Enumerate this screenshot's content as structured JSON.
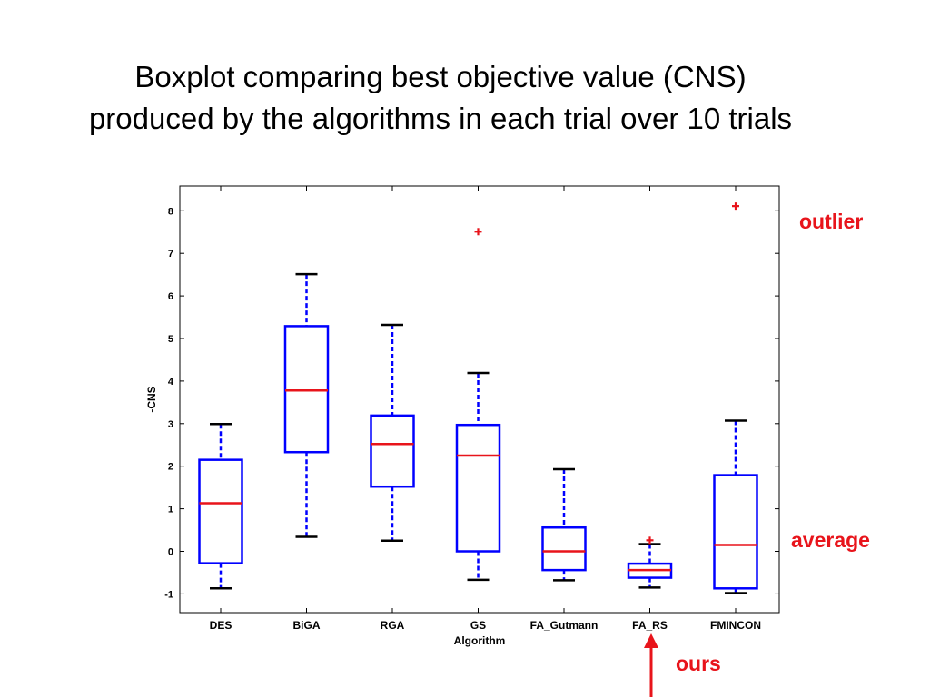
{
  "slide": {
    "title_line1": "Boxplot comparing best objective value (CNS)",
    "title_line2": "produced by the algorithms in each trial over 10 trials"
  },
  "annotations": {
    "outlier": "outlier",
    "average": "average",
    "ours": "ours"
  },
  "colors": {
    "box": "#0000ff",
    "median": "#e8141b",
    "whisker_cap": "#000000",
    "outlier": "#e8141b",
    "annotation": "#e8141b"
  },
  "chart_data": {
    "type": "box",
    "title": "",
    "xlabel": "Algorithm",
    "ylabel": "-CNS",
    "ylim": [
      -1.5,
      8.6
    ],
    "yticks": [
      "-1",
      "0",
      "1",
      "2",
      "3",
      "4",
      "5",
      "6",
      "7",
      "8"
    ],
    "grid": false,
    "categories": [
      "DES",
      "BiGA",
      "RGA",
      "GS",
      "FA_Gutmann",
      "FA_RS",
      "FMINCON"
    ],
    "boxes": [
      {
        "name": "DES",
        "whisker_low": -0.87,
        "q1": -0.28,
        "median": 1.13,
        "q3": 2.15,
        "whisker_high": 2.99,
        "outliers": []
      },
      {
        "name": "BiGA",
        "whisker_low": 0.34,
        "q1": 2.33,
        "median": 3.78,
        "q3": 5.29,
        "whisker_high": 6.51,
        "outliers": []
      },
      {
        "name": "RGA",
        "whisker_low": 0.25,
        "q1": 1.52,
        "median": 2.52,
        "q3": 3.19,
        "whisker_high": 5.32,
        "outliers": []
      },
      {
        "name": "GS",
        "whisker_low": -0.67,
        "q1": 0.0,
        "median": 2.25,
        "q3": 2.97,
        "whisker_high": 4.19,
        "outliers": [
          7.51
        ]
      },
      {
        "name": "FA_Gutmann",
        "whisker_low": -0.68,
        "q1": -0.44,
        "median": 0.0,
        "q3": 0.56,
        "whisker_high": 1.93,
        "outliers": []
      },
      {
        "name": "FA_RS",
        "whisker_low": -0.85,
        "q1": -0.62,
        "median": -0.44,
        "q3": -0.29,
        "whisker_high": 0.17,
        "outliers": [
          0.26
        ]
      },
      {
        "name": "FMINCON",
        "whisker_low": -0.98,
        "q1": -0.87,
        "median": 0.15,
        "q3": 1.79,
        "whisker_high": 3.07,
        "outliers": [
          8.11
        ]
      }
    ]
  }
}
